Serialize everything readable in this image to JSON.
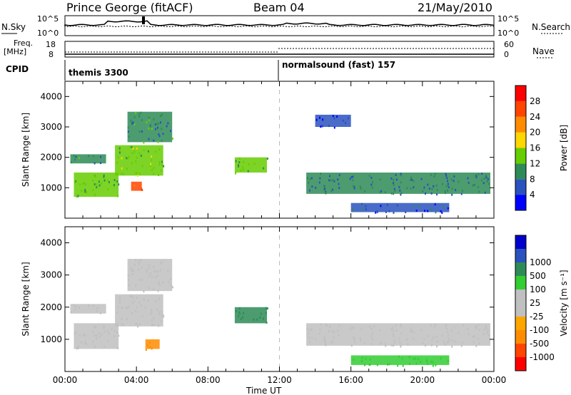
{
  "header": {
    "station": "Prince George (fitACF)",
    "beam": "Beam 04",
    "date": "21/May/2010"
  },
  "top_strip": {
    "left_label": "N.Sky",
    "right_label": "N.Search",
    "left_ticks": [
      "10^5",
      "10^0"
    ],
    "right_ticks": [
      "10^5",
      "10^0"
    ]
  },
  "freq_strip": {
    "left_label_1": "Freq.",
    "left_label_2": "[MHz]",
    "left_ticks": [
      "18",
      "8"
    ],
    "right_label": "Nave",
    "right_ticks": [
      "60",
      "0"
    ]
  },
  "cpid": {
    "label": "CPID",
    "programs": [
      "themis 3300",
      "normalsound (fast) 157"
    ]
  },
  "colors": {
    "power_scale": [
      "#0000ff",
      "#2a52be",
      "#2e8b57",
      "#66cd00",
      "#ffd700",
      "#ff8c00",
      "#ff4500",
      "#ff0000"
    ],
    "velocity_scale": [
      "#ff0000",
      "#ff4500",
      "#ff8c00",
      "#ffa500",
      "#c0c0c0",
      "#c0c0c0",
      "#32cd32",
      "#2e8b57",
      "#2a52be",
      "#0000cd"
    ]
  },
  "chart_data": [
    {
      "type": "heatmap",
      "title": "Power",
      "xlabel": "",
      "ylabel": "Slant Range [km]",
      "x_ticks": [
        "00:00",
        "04:00",
        "08:00",
        "12:00",
        "16:00",
        "20:00",
        "00:00"
      ],
      "y_ticks": [
        "1000",
        "2000",
        "3000",
        "4000"
      ],
      "ylim": [
        0,
        4500
      ],
      "colorbar": {
        "label": "Power [dB]",
        "ticks": [
          "4",
          "8",
          "12",
          "16",
          "20",
          "24",
          "28"
        ]
      },
      "regions": [
        {
          "t0": 0.5,
          "t1": 3.0,
          "r0": 700,
          "r1": 1500,
          "value": 14
        },
        {
          "t0": 0.3,
          "t1": 2.3,
          "r0": 1800,
          "r1": 2100,
          "value": 12
        },
        {
          "t0": 2.8,
          "t1": 5.5,
          "r0": 1400,
          "r1": 2400,
          "value": 16
        },
        {
          "t0": 3.5,
          "t1": 6.0,
          "r0": 2500,
          "r1": 3500,
          "value": 12
        },
        {
          "t0": 3.7,
          "t1": 4.3,
          "r0": 900,
          "r1": 1200,
          "value": 26
        },
        {
          "t0": 9.5,
          "t1": 11.3,
          "r0": 1500,
          "r1": 2000,
          "value": 14
        },
        {
          "t0": 13.5,
          "t1": 23.8,
          "r0": 800,
          "r1": 1500,
          "value": 10
        },
        {
          "t0": 16.0,
          "t1": 21.5,
          "r0": 200,
          "r1": 500,
          "value": 8
        },
        {
          "t0": 14.0,
          "t1": 16.0,
          "r0": 3000,
          "r1": 3400,
          "value": 6
        }
      ]
    },
    {
      "type": "heatmap",
      "title": "Velocity",
      "xlabel": "Time UT",
      "ylabel": "Slant Range [km]",
      "x_ticks": [
        "00:00",
        "04:00",
        "08:00",
        "12:00",
        "16:00",
        "20:00",
        "00:00"
      ],
      "y_ticks": [
        "1000",
        "2000",
        "3000",
        "4000"
      ],
      "ylim": [
        0,
        4500
      ],
      "colorbar": {
        "label": "Velocity [m s⁻¹]",
        "ticks": [
          "-1000",
          "-500",
          "-100",
          "-25",
          "25",
          "100",
          "500",
          "1000"
        ]
      },
      "regions": [
        {
          "t0": 0.5,
          "t1": 3.0,
          "r0": 700,
          "r1": 1500,
          "value": 0
        },
        {
          "t0": 0.3,
          "t1": 2.3,
          "r0": 1800,
          "r1": 2100,
          "value": 0
        },
        {
          "t0": 2.8,
          "t1": 5.5,
          "r0": 1400,
          "r1": 2400,
          "value": 0
        },
        {
          "t0": 3.5,
          "t1": 6.0,
          "r0": 2500,
          "r1": 3500,
          "value": 0
        },
        {
          "t0": 4.5,
          "t1": 5.3,
          "r0": 700,
          "r1": 1000,
          "value": -300
        },
        {
          "t0": 9.5,
          "t1": 11.3,
          "r0": 1500,
          "r1": 2000,
          "value": 300
        },
        {
          "t0": 13.5,
          "t1": 23.8,
          "r0": 800,
          "r1": 1500,
          "value": 0
        },
        {
          "t0": 16.0,
          "t1": 21.5,
          "r0": 200,
          "r1": 500,
          "value": 50
        }
      ]
    }
  ]
}
